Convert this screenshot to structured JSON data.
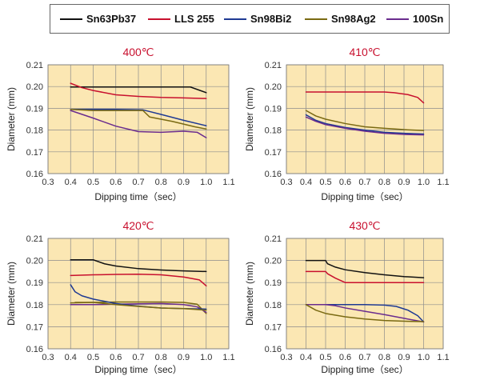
{
  "legend": {
    "items": [
      {
        "label": "Sn63Pb37",
        "color": "#111111"
      },
      {
        "label": "LLS 255",
        "color": "#c8102e"
      },
      {
        "label": "Sn98Bi2",
        "color": "#1f3a93"
      },
      {
        "label": "Sn98Ag2",
        "color": "#7a6a12"
      },
      {
        "label": "100Sn",
        "color": "#6a2c8e"
      }
    ]
  },
  "colors": {
    "plot_background": "#fbe7b3",
    "grid": "#8c8c8c",
    "title": "#c8102e"
  },
  "chart_data": [
    {
      "type": "line",
      "title": "400℃",
      "xlabel": "Dipping time（sec）",
      "ylabel": "Diameter (mm)",
      "xlim": [
        0.3,
        1.1
      ],
      "ylim": [
        0.16,
        0.21
      ],
      "xticks": [
        "0.3",
        "0.4",
        "0.5",
        "0.6",
        "0.7",
        "0.8",
        "0.9",
        "1.0",
        "1.1"
      ],
      "yticks": [
        "0.16",
        "0.17",
        "0.18",
        "0.19",
        "0.20",
        "0.21"
      ],
      "grid": true,
      "series": [
        {
          "name": "Sn63Pb37",
          "points": [
            [
              0.4,
              0.1998
            ],
            [
              0.6,
              0.1998
            ],
            [
              0.8,
              0.1998
            ],
            [
              0.93,
              0.1998
            ],
            [
              1.0,
              0.1972
            ]
          ]
        },
        {
          "name": "LLS 255",
          "points": [
            [
              0.4,
              0.2015
            ],
            [
              0.45,
              0.1995
            ],
            [
              0.5,
              0.1982
            ],
            [
              0.6,
              0.1962
            ],
            [
              0.7,
              0.1955
            ],
            [
              0.8,
              0.195
            ],
            [
              0.9,
              0.1948
            ],
            [
              1.0,
              0.1945
            ]
          ]
        },
        {
          "name": "Sn98Bi2",
          "points": [
            [
              0.4,
              0.1895
            ],
            [
              0.5,
              0.1895
            ],
            [
              0.6,
              0.1895
            ],
            [
              0.72,
              0.1893
            ],
            [
              0.8,
              0.1872
            ],
            [
              0.9,
              0.1845
            ],
            [
              1.0,
              0.182
            ]
          ]
        },
        {
          "name": "Sn98Ag2",
          "points": [
            [
              0.4,
              0.1895
            ],
            [
              0.5,
              0.189
            ],
            [
              0.6,
              0.189
            ],
            [
              0.72,
              0.189
            ],
            [
              0.75,
              0.186
            ],
            [
              0.85,
              0.184
            ],
            [
              0.95,
              0.1815
            ],
            [
              1.0,
              0.1805
            ]
          ]
        },
        {
          "name": "100Sn",
          "points": [
            [
              0.4,
              0.189
            ],
            [
              0.5,
              0.1855
            ],
            [
              0.6,
              0.1818
            ],
            [
              0.7,
              0.1793
            ],
            [
              0.8,
              0.179
            ],
            [
              0.9,
              0.1795
            ],
            [
              0.96,
              0.179
            ],
            [
              1.0,
              0.1765
            ]
          ]
        }
      ]
    },
    {
      "type": "line",
      "title": "410℃",
      "xlabel": "Dipping time（sec）",
      "ylabel": "Diameter (mm)",
      "xlim": [
        0.3,
        1.1
      ],
      "ylim": [
        0.16,
        0.21
      ],
      "xticks": [
        "0.3",
        "0.4",
        "0.5",
        "0.6",
        "0.7",
        "0.8",
        "0.9",
        "1.0",
        "1.1"
      ],
      "yticks": [
        "0.16",
        "0.17",
        "0.18",
        "0.19",
        "0.20",
        "0.21"
      ],
      "grid": true,
      "series": [
        {
          "name": "LLS 255",
          "points": [
            [
              0.4,
              0.1975
            ],
            [
              0.6,
              0.1975
            ],
            [
              0.8,
              0.1975
            ],
            [
              0.85,
              0.1972
            ],
            [
              0.92,
              0.1963
            ],
            [
              0.97,
              0.195
            ],
            [
              1.0,
              0.1925
            ]
          ]
        },
        {
          "name": "Sn98Ag2",
          "points": [
            [
              0.4,
              0.189
            ],
            [
              0.45,
              0.1865
            ],
            [
              0.5,
              0.185
            ],
            [
              0.6,
              0.183
            ],
            [
              0.7,
              0.1815
            ],
            [
              0.8,
              0.1808
            ],
            [
              0.9,
              0.1802
            ],
            [
              1.0,
              0.1798
            ]
          ]
        },
        {
          "name": "Sn98Bi2",
          "points": [
            [
              0.4,
              0.187
            ],
            [
              0.45,
              0.1845
            ],
            [
              0.5,
              0.183
            ],
            [
              0.6,
              0.1812
            ],
            [
              0.7,
              0.18
            ],
            [
              0.8,
              0.179
            ],
            [
              0.9,
              0.1785
            ],
            [
              1.0,
              0.1782
            ]
          ]
        },
        {
          "name": "100Sn",
          "points": [
            [
              0.4,
              0.186
            ],
            [
              0.45,
              0.184
            ],
            [
              0.5,
              0.1825
            ],
            [
              0.6,
              0.1808
            ],
            [
              0.7,
              0.1795
            ],
            [
              0.8,
              0.1785
            ],
            [
              0.9,
              0.178
            ],
            [
              1.0,
              0.1778
            ]
          ]
        }
      ]
    },
    {
      "type": "line",
      "title": "420℃",
      "xlabel": "Dipping time（sec）",
      "ylabel": "Diameter (mm)",
      "xlim": [
        0.3,
        1.1
      ],
      "ylim": [
        0.16,
        0.21
      ],
      "xticks": [
        "0.3",
        "0.4",
        "0.5",
        "0.6",
        "0.7",
        "0.8",
        "0.9",
        "1.0",
        "1.1"
      ],
      "yticks": [
        "0.16",
        "0.17",
        "0.18",
        "0.19",
        "0.20",
        "0.21"
      ],
      "grid": true,
      "series": [
        {
          "name": "Sn63Pb37",
          "points": [
            [
              0.4,
              0.2003
            ],
            [
              0.5,
              0.2003
            ],
            [
              0.55,
              0.1985
            ],
            [
              0.6,
              0.1975
            ],
            [
              0.7,
              0.1963
            ],
            [
              0.8,
              0.1957
            ],
            [
              0.9,
              0.1953
            ],
            [
              1.0,
              0.195
            ]
          ]
        },
        {
          "name": "LLS 255",
          "points": [
            [
              0.4,
              0.1932
            ],
            [
              0.5,
              0.1935
            ],
            [
              0.6,
              0.1937
            ],
            [
              0.7,
              0.1938
            ],
            [
              0.8,
              0.1935
            ],
            [
              0.9,
              0.1925
            ],
            [
              0.97,
              0.1912
            ],
            [
              1.0,
              0.1885
            ]
          ]
        },
        {
          "name": "Sn98Ag2",
          "points": [
            [
              0.4,
              0.1808
            ],
            [
              0.5,
              0.181
            ],
            [
              0.6,
              0.1812
            ],
            [
              0.7,
              0.1812
            ],
            [
              0.8,
              0.1812
            ],
            [
              0.9,
              0.181
            ],
            [
              0.96,
              0.1802
            ],
            [
              1.0,
              0.176
            ]
          ]
        },
        {
          "name": "100Sn",
          "points": [
            [
              0.4,
              0.18
            ],
            [
              0.5,
              0.18
            ],
            [
              0.6,
              0.1802
            ],
            [
              0.7,
              0.1804
            ],
            [
              0.8,
              0.1805
            ],
            [
              0.9,
              0.18
            ],
            [
              0.96,
              0.179
            ],
            [
              1.0,
              0.1765
            ]
          ]
        },
        {
          "name": "Sn98Bi2",
          "points": [
            [
              0.4,
              0.189
            ],
            [
              0.42,
              0.1858
            ],
            [
              0.45,
              0.184
            ],
            [
              0.5,
              0.1825
            ],
            [
              0.6,
              0.1805
            ],
            [
              0.7,
              0.1793
            ],
            [
              0.8,
              0.1785
            ],
            [
              0.9,
              0.1782
            ],
            [
              1.0,
              0.178
            ]
          ]
        },
        {
          "name": "Sn98Ag2",
          "points": [
            [
              0.42,
              0.181
            ],
            [
              0.5,
              0.181
            ],
            [
              0.6,
              0.18
            ],
            [
              0.7,
              0.1792
            ],
            [
              0.8,
              0.1785
            ],
            [
              0.9,
              0.1782
            ],
            [
              1.0,
              0.1775
            ]
          ]
        }
      ]
    },
    {
      "type": "line",
      "title": "430℃",
      "xlabel": "Dipping time（sec）",
      "ylabel": "Diameter (mm)",
      "xlim": [
        0.3,
        1.1
      ],
      "ylim": [
        0.16,
        0.21
      ],
      "xticks": [
        "0.3",
        "0.4",
        "0.5",
        "0.6",
        "0.7",
        "0.8",
        "0.9",
        "1.0",
        "1.1"
      ],
      "yticks": [
        "0.16",
        "0.17",
        "0.18",
        "0.19",
        "0.20",
        "0.21"
      ],
      "grid": true,
      "series": [
        {
          "name": "Sn63Pb37",
          "points": [
            [
              0.4,
              0.2
            ],
            [
              0.5,
              0.2
            ],
            [
              0.51,
              0.1985
            ],
            [
              0.55,
              0.197
            ],
            [
              0.6,
              0.1958
            ],
            [
              0.7,
              0.1945
            ],
            [
              0.8,
              0.1935
            ],
            [
              0.9,
              0.1927
            ],
            [
              1.0,
              0.1922
            ]
          ]
        },
        {
          "name": "LLS 255",
          "points": [
            [
              0.4,
              0.195
            ],
            [
              0.5,
              0.195
            ],
            [
              0.51,
              0.194
            ],
            [
              0.55,
              0.192
            ],
            [
              0.6,
              0.19
            ],
            [
              0.7,
              0.19
            ],
            [
              0.8,
              0.19
            ],
            [
              0.9,
              0.19
            ],
            [
              1.0,
              0.19
            ]
          ]
        },
        {
          "name": "Sn98Bi2",
          "points": [
            [
              0.4,
              0.18
            ],
            [
              0.5,
              0.18
            ],
            [
              0.6,
              0.18
            ],
            [
              0.7,
              0.18
            ],
            [
              0.8,
              0.1798
            ],
            [
              0.86,
              0.1792
            ],
            [
              0.92,
              0.1775
            ],
            [
              0.97,
              0.175
            ],
            [
              1.0,
              0.1722
            ]
          ]
        },
        {
          "name": "100Sn",
          "points": [
            [
              0.4,
              0.18
            ],
            [
              0.5,
              0.18
            ],
            [
              0.55,
              0.1795
            ],
            [
              0.6,
              0.1785
            ],
            [
              0.7,
              0.177
            ],
            [
              0.8,
              0.1755
            ],
            [
              0.9,
              0.1738
            ],
            [
              1.0,
              0.1722
            ]
          ]
        },
        {
          "name": "Sn98Ag2",
          "points": [
            [
              0.4,
              0.18
            ],
            [
              0.45,
              0.1775
            ],
            [
              0.5,
              0.176
            ],
            [
              0.6,
              0.1745
            ],
            [
              0.7,
              0.1735
            ],
            [
              0.8,
              0.1728
            ],
            [
              0.9,
              0.1725
            ],
            [
              1.0,
              0.1723
            ]
          ]
        }
      ]
    }
  ]
}
